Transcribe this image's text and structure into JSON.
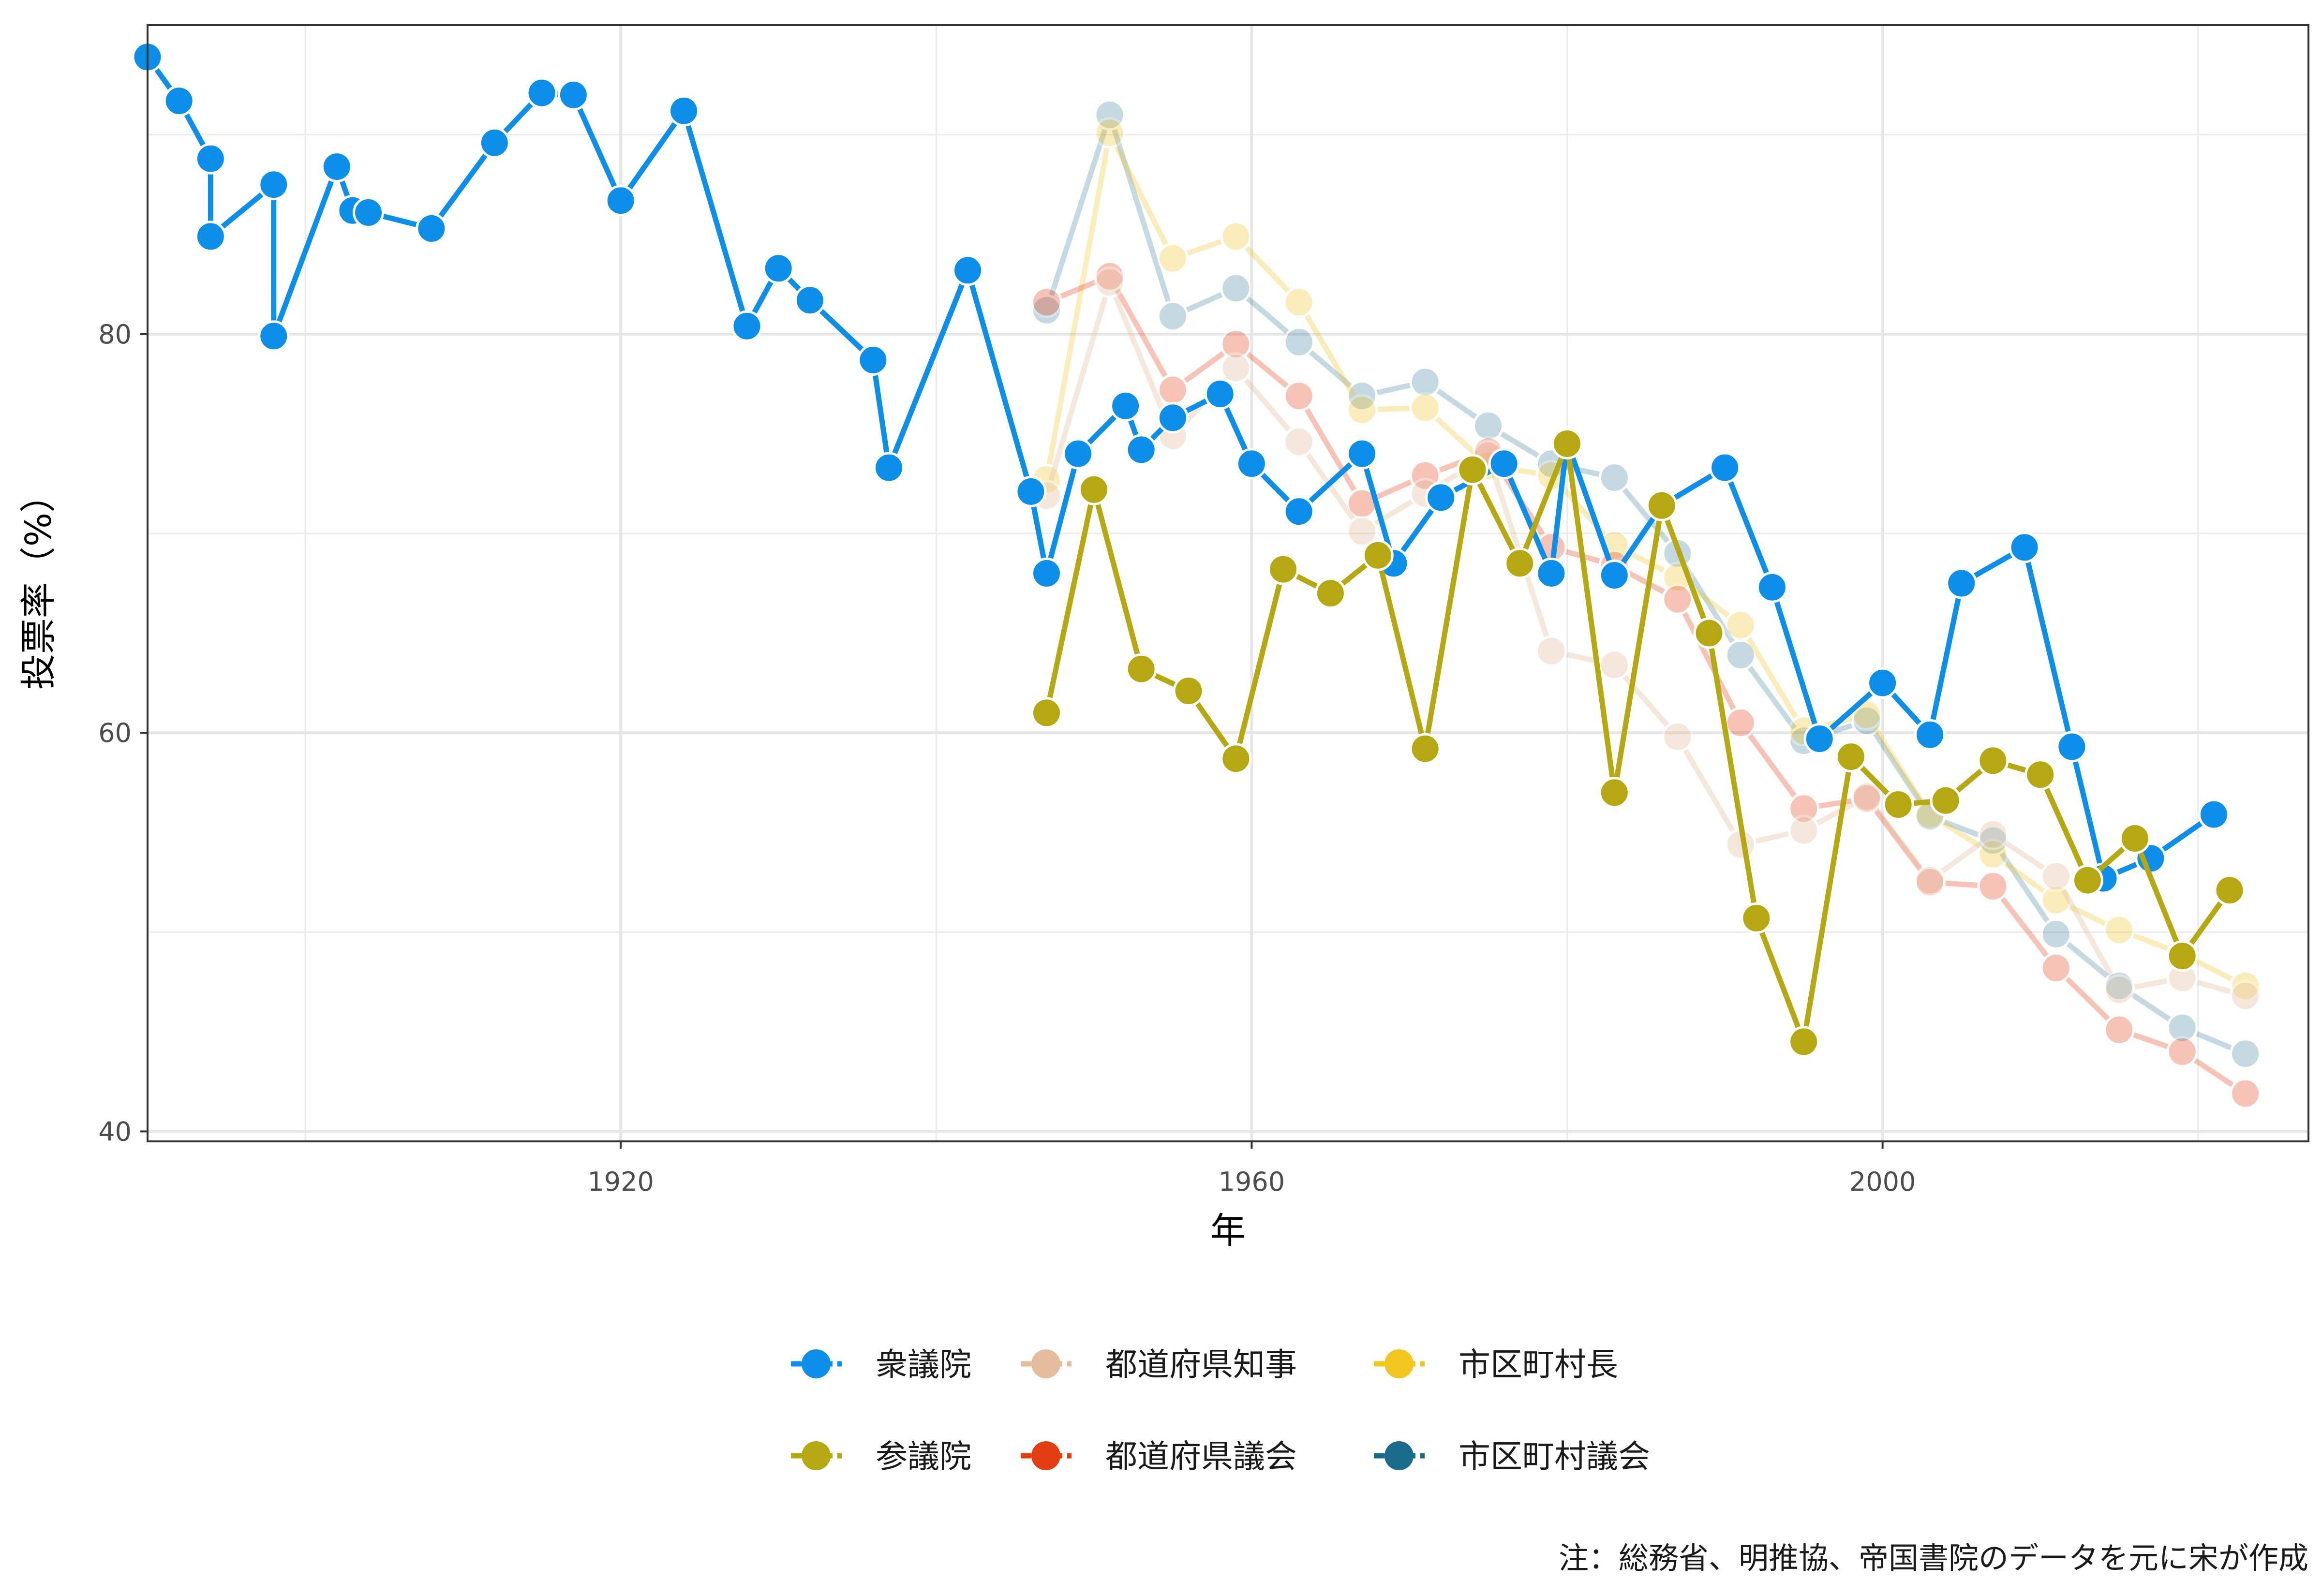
{
  "chart_data": {
    "type": "line",
    "xlabel": "年",
    "ylabel": "投票率（%）",
    "xlim": [
      1890,
      2027
    ],
    "ylim": [
      39.5,
      95.5
    ],
    "xticks": [
      1920,
      1960,
      2000
    ],
    "yticks": [
      40,
      60,
      80
    ],
    "grid": true,
    "legend_position": "bottom",
    "note": "注：総務省、明推協、帝国書院のデータを元に宋が作成",
    "series": [
      {
        "name": "衆議院",
        "color": "#0d8ee9",
        "opacity": 1.0,
        "points": [
          [
            1890,
            93.9
          ],
          [
            1892,
            91.7
          ],
          [
            1894,
            88.8
          ],
          [
            1894,
            84.9
          ],
          [
            1898,
            87.5
          ],
          [
            1898,
            79.9
          ],
          [
            1902,
            88.4
          ],
          [
            1903,
            86.2
          ],
          [
            1904,
            86.1
          ],
          [
            1908,
            85.3
          ],
          [
            1912,
            89.6
          ],
          [
            1915,
            92.1
          ],
          [
            1917,
            92.0
          ],
          [
            1920,
            86.7
          ],
          [
            1924,
            91.2
          ],
          [
            1928,
            80.4
          ],
          [
            1930,
            83.3
          ],
          [
            1932,
            81.7
          ],
          [
            1936,
            78.7
          ],
          [
            1937,
            73.3
          ],
          [
            1942,
            83.2
          ],
          [
            1946,
            72.1
          ],
          [
            1947,
            68.0
          ],
          [
            1949,
            74.0
          ],
          [
            1952,
            76.4
          ],
          [
            1953,
            74.2
          ],
          [
            1955,
            75.8
          ],
          [
            1958,
            77.0
          ],
          [
            1960,
            73.5
          ],
          [
            1963,
            71.1
          ],
          [
            1967,
            74.0
          ],
          [
            1969,
            68.5
          ],
          [
            1972,
            71.8
          ],
          [
            1976,
            73.5
          ],
          [
            1979,
            68.0
          ],
          [
            1980,
            74.6
          ],
          [
            1983,
            67.9
          ],
          [
            1986,
            71.4
          ],
          [
            1990,
            73.3
          ],
          [
            1993,
            67.3
          ],
          [
            1996,
            59.7
          ],
          [
            2000,
            62.5
          ],
          [
            2003,
            59.9
          ],
          [
            2005,
            67.5
          ],
          [
            2009,
            69.3
          ],
          [
            2012,
            59.3
          ],
          [
            2014,
            52.7
          ],
          [
            2017,
            53.7
          ],
          [
            2021,
            55.9
          ]
        ]
      },
      {
        "name": "都道府県知事",
        "color": "#e3bd9d",
        "opacity": 0.35,
        "points": [
          [
            1947,
            71.9
          ],
          [
            1951,
            82.6
          ],
          [
            1955,
            74.9
          ],
          [
            1959,
            78.3
          ],
          [
            1963,
            74.6
          ],
          [
            1967,
            70.1
          ],
          [
            1971,
            72.0
          ],
          [
            1975,
            73.9
          ],
          [
            1979,
            64.1
          ],
          [
            1983,
            63.4
          ],
          [
            1987,
            59.8
          ],
          [
            1991,
            54.4
          ],
          [
            1995,
            55.1
          ],
          [
            1999,
            56.8
          ],
          [
            2003,
            52.6
          ],
          [
            2007,
            54.9
          ],
          [
            2011,
            52.8
          ],
          [
            2015,
            47.1
          ],
          [
            2019,
            47.7
          ],
          [
            2023,
            46.8
          ]
        ]
      },
      {
        "name": "市区町村長",
        "color": "#f2c520",
        "opacity": 0.3,
        "points": [
          [
            1947,
            72.7
          ],
          [
            1951,
            90.1
          ],
          [
            1955,
            83.8
          ],
          [
            1959,
            84.9
          ],
          [
            1963,
            81.6
          ],
          [
            1967,
            76.2
          ],
          [
            1971,
            76.3
          ],
          [
            1975,
            73.4
          ],
          [
            1979,
            72.9
          ],
          [
            1983,
            69.4
          ],
          [
            1987,
            67.8
          ],
          [
            1991,
            65.4
          ],
          [
            1995,
            60.1
          ],
          [
            1999,
            60.9
          ],
          [
            2003,
            55.9
          ],
          [
            2007,
            53.9
          ],
          [
            2011,
            51.6
          ],
          [
            2015,
            50.1
          ],
          [
            2019,
            48.9
          ],
          [
            2023,
            47.3
          ]
        ]
      },
      {
        "name": "参議院",
        "color": "#b5a812",
        "opacity": 1.0,
        "points": [
          [
            1947,
            61.0
          ],
          [
            1950,
            72.2
          ],
          [
            1953,
            63.2
          ],
          [
            1956,
            62.1
          ],
          [
            1959,
            58.7
          ],
          [
            1962,
            68.2
          ],
          [
            1965,
            67.0
          ],
          [
            1968,
            68.9
          ],
          [
            1971,
            59.2
          ],
          [
            1974,
            73.2
          ],
          [
            1977,
            68.5
          ],
          [
            1980,
            74.5
          ],
          [
            1983,
            57.0
          ],
          [
            1986,
            71.4
          ],
          [
            1989,
            65.0
          ],
          [
            1992,
            50.7
          ],
          [
            1995,
            44.5
          ],
          [
            1998,
            58.8
          ],
          [
            2001,
            56.4
          ],
          [
            2004,
            56.6
          ],
          [
            2007,
            58.6
          ],
          [
            2010,
            57.9
          ],
          [
            2013,
            52.6
          ],
          [
            2016,
            54.7
          ],
          [
            2019,
            48.8
          ],
          [
            2022,
            52.1
          ]
        ]
      },
      {
        "name": "都道府県議会",
        "color": "#e33d12",
        "opacity": 0.3,
        "points": [
          [
            1947,
            81.6
          ],
          [
            1951,
            82.9
          ],
          [
            1955,
            77.2
          ],
          [
            1959,
            79.5
          ],
          [
            1963,
            76.9
          ],
          [
            1967,
            71.5
          ],
          [
            1971,
            72.9
          ],
          [
            1975,
            74.1
          ],
          [
            1979,
            69.3
          ],
          [
            1983,
            68.4
          ],
          [
            1987,
            66.7
          ],
          [
            1991,
            60.5
          ],
          [
            1995,
            56.2
          ],
          [
            1999,
            56.7
          ],
          [
            2003,
            52.5
          ],
          [
            2007,
            52.3
          ],
          [
            2011,
            48.2
          ],
          [
            2015,
            45.1
          ],
          [
            2019,
            44.0
          ],
          [
            2023,
            41.9
          ]
        ]
      },
      {
        "name": "市区町村議会",
        "color": "#1a6b8c",
        "opacity": 0.25,
        "points": [
          [
            1947,
            81.2
          ],
          [
            1951,
            91.0
          ],
          [
            1955,
            80.9
          ],
          [
            1959,
            82.3
          ],
          [
            1963,
            79.6
          ],
          [
            1967,
            76.9
          ],
          [
            1971,
            77.6
          ],
          [
            1975,
            75.4
          ],
          [
            1979,
            73.5
          ],
          [
            1983,
            72.8
          ],
          [
            1987,
            69.0
          ],
          [
            1991,
            63.9
          ],
          [
            1995,
            59.6
          ],
          [
            1999,
            60.6
          ],
          [
            2003,
            55.8
          ],
          [
            2007,
            54.6
          ],
          [
            2011,
            49.9
          ],
          [
            2015,
            47.3
          ],
          [
            2019,
            45.2
          ],
          [
            2023,
            43.9
          ]
        ]
      }
    ]
  }
}
